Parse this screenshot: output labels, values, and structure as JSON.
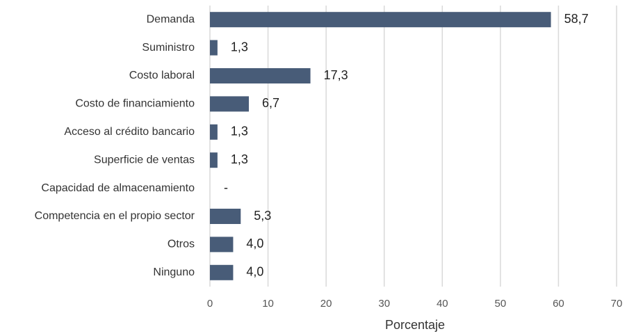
{
  "chart_data": {
    "type": "bar",
    "orientation": "horizontal",
    "x_label": "Porcentaje",
    "categories": [
      "Demanda",
      "Suministro",
      "Costo laboral",
      "Costo de financiamiento",
      "Acceso al crédito bancario",
      "Superficie de ventas",
      "Capacidad de almacenamiento",
      "Competencia en el propio sector",
      "Otros",
      "Ninguno"
    ],
    "values": [
      58.7,
      1.3,
      17.3,
      6.7,
      1.3,
      1.3,
      0,
      5.3,
      4.0,
      4.0
    ],
    "value_labels": [
      "58,7",
      "1,3",
      "17,3",
      "6,7",
      "1,3",
      "1,3",
      "-",
      "5,3",
      "4,0",
      "4,0"
    ],
    "color": "#485c78",
    "xlim": [
      0,
      70
    ],
    "xticks": [
      0,
      10,
      20,
      30,
      40,
      50,
      60,
      70
    ],
    "grid": true
  }
}
